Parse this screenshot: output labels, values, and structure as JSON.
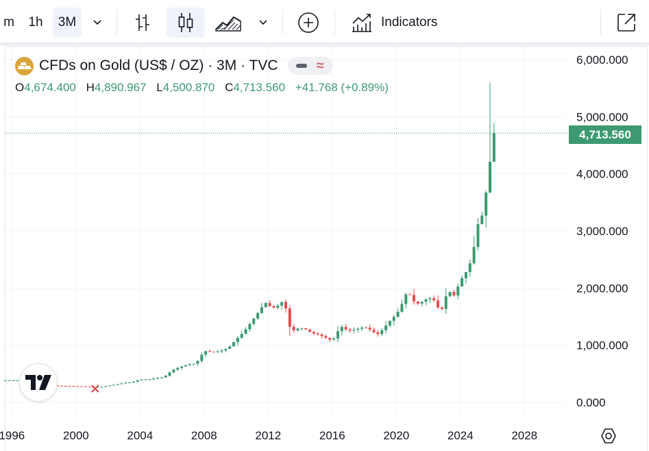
{
  "toolbar": {
    "intervals": [
      "m",
      "1h",
      "3M"
    ],
    "active_interval": "3M",
    "indicators_label": "Indicators",
    "icons": [
      "chevron-down-icon",
      "bar-chart-icon",
      "candles-icon",
      "area-chart-icon",
      "chevron-down-icon",
      "plus-circle-icon",
      "indicators-icon",
      "popout-icon"
    ]
  },
  "legend": {
    "title": "CFDs on Gold (US$ / OZ) · 3M · TVC",
    "ohlc": {
      "o_label": "O",
      "o": "4,674.400",
      "h_label": "H",
      "h": "4,890.967",
      "l_label": "L",
      "l": "4,500.870",
      "c_label": "C",
      "c": "4,713.560",
      "change": "+41.768 (+0.89%)"
    }
  },
  "price_label": "4,713.560",
  "colors": {
    "up": "#3d9970",
    "down": "#e54d4f",
    "grid": "#f0f3fa",
    "axis_text": "#131722",
    "logo": "#d9a43a"
  },
  "chart_data": {
    "type": "candlestick",
    "title": "CFDs on Gold (US$ / OZ) · 3M · TVC",
    "xlabel": "",
    "ylabel": "",
    "ylim": [
      -100,
      6200
    ],
    "xlim": [
      1995.6,
      2030.6
    ],
    "y_ticks": [
      0,
      1000,
      2000,
      3000,
      4000,
      5000,
      6000
    ],
    "y_tick_labels": [
      "0.000",
      "1,000.000",
      "2,000.000",
      "3,000.000",
      "4,000.000",
      "5,000.000",
      "6,000.000"
    ],
    "x_ticks": [
      1996,
      2000,
      2004,
      2008,
      2012,
      2016,
      2020,
      2024,
      2028
    ],
    "x_tick_labels": [
      "1996",
      "2000",
      "2004",
      "2008",
      "2012",
      "2016",
      "2020",
      "2024",
      "2028"
    ],
    "last_price": 4713.56,
    "grid": true,
    "series_points": [
      [
        1995.6,
        385
      ],
      [
        1996.5,
        385
      ],
      [
        1997.5,
        340
      ],
      [
        1998.5,
        295
      ],
      [
        1999.5,
        285
      ],
      [
        2000.5,
        280
      ],
      [
        2001.2,
        265
      ],
      [
        2001.8,
        280
      ],
      [
        2002.5,
        315
      ],
      [
        2003.0,
        340
      ],
      [
        2003.5,
        355
      ],
      [
        2004.0,
        400
      ],
      [
        2004.5,
        400
      ],
      [
        2005.0,
        425
      ],
      [
        2005.5,
        440
      ],
      [
        2006.0,
        560
      ],
      [
        2006.5,
        620
      ],
      [
        2007.0,
        665
      ],
      [
        2007.5,
        680
      ],
      [
        2008.0,
        900
      ],
      [
        2008.5,
        880
      ],
      [
        2009.0,
        900
      ],
      [
        2009.5,
        950
      ],
      [
        2010.0,
        1100
      ],
      [
        2010.5,
        1240
      ],
      [
        2011.0,
        1430
      ],
      [
        2011.5,
        1620
      ],
      [
        2011.8,
        1750
      ],
      [
        2012.2,
        1660
      ],
      [
        2012.5,
        1650
      ],
      [
        2012.8,
        1780
      ],
      [
        2013.2,
        1600
      ],
      [
        2013.4,
        1230
      ],
      [
        2013.8,
        1290
      ],
      [
        2014.2,
        1300
      ],
      [
        2014.5,
        1250
      ],
      [
        2014.8,
        1210
      ],
      [
        2015.2,
        1180
      ],
      [
        2015.5,
        1140
      ],
      [
        2015.8,
        1110
      ],
      [
        2016.0,
        1060
      ],
      [
        2016.3,
        1230
      ],
      [
        2016.6,
        1320
      ],
      [
        2017.0,
        1250
      ],
      [
        2017.5,
        1280
      ],
      [
        2018.0,
        1320
      ],
      [
        2018.5,
        1250
      ],
      [
        2018.8,
        1180
      ],
      [
        2019.2,
        1290
      ],
      [
        2019.5,
        1400
      ],
      [
        2019.8,
        1480
      ],
      [
        2020.2,
        1620
      ],
      [
        2020.6,
        1890
      ],
      [
        2020.9,
        1880
      ],
      [
        2021.2,
        1710
      ],
      [
        2021.6,
        1760
      ],
      [
        2022.0,
        1830
      ],
      [
        2022.3,
        1810
      ],
      [
        2022.6,
        1660
      ],
      [
        2022.9,
        1630
      ],
      [
        2023.2,
        1970
      ],
      [
        2023.6,
        1870
      ],
      [
        2023.9,
        2060
      ],
      [
        2024.2,
        2230
      ],
      [
        2024.5,
        2330
      ],
      [
        2024.8,
        2640
      ],
      [
        2025.1,
        3120
      ],
      [
        2025.4,
        3300
      ],
      [
        2025.7,
        3860
      ],
      [
        2025.9,
        4330
      ],
      [
        2026.1,
        4670
      ],
      [
        2026.3,
        4713
      ]
    ]
  }
}
